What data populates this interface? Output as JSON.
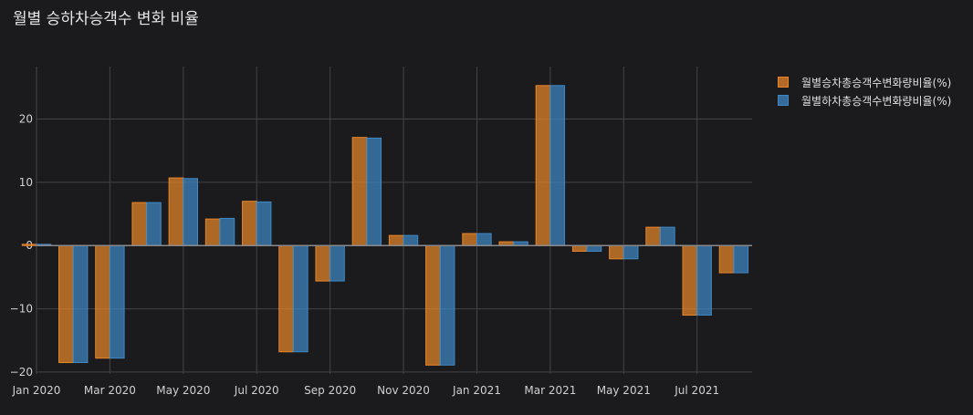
{
  "title": "월별 승하차승객수 변화 비율",
  "colors": {
    "background": "#1b1b1d",
    "grid": "#444446",
    "series": [
      "#e8862a",
      "#3f88c5"
    ]
  },
  "chart_data": {
    "type": "bar",
    "barmode": "group",
    "x": [
      "2020-01",
      "2020-02",
      "2020-03",
      "2020-04",
      "2020-05",
      "2020-06",
      "2020-07",
      "2020-08",
      "2020-09",
      "2020-10",
      "2020-11",
      "2020-12",
      "2021-01",
      "2021-02",
      "2021-03",
      "2021-04",
      "2021-05",
      "2021-06",
      "2021-07",
      "2021-08"
    ],
    "xtick_labels": [
      "Jan 2020",
      "Mar 2020",
      "May 2020",
      "Jul 2020",
      "Sep 2020",
      "Nov 2020",
      "Jan 2021",
      "Mar 2021",
      "May 2021",
      "Jul 2021"
    ],
    "xtick_values": [
      "2020-01",
      "2020-03",
      "2020-05",
      "2020-07",
      "2020-09",
      "2020-11",
      "2021-01",
      "2021-03",
      "2021-05",
      "2021-07"
    ],
    "yticks": [
      -20,
      -10,
      0,
      10,
      20
    ],
    "ytick_labels": [
      "−20",
      "−10",
      "0",
      "10",
      "20"
    ],
    "ylim": [
      -20.3,
      28.3
    ],
    "grid": true,
    "legend_position": "top-right",
    "series": [
      {
        "name": "월별승차총승객수변화량비율(%)",
        "values": [
          0.2,
          -18.5,
          -17.8,
          6.8,
          10.7,
          4.2,
          7.0,
          -16.8,
          -5.6,
          17.1,
          1.6,
          -18.9,
          1.9,
          0.6,
          25.3,
          -0.9,
          -2.1,
          2.9,
          -11.0,
          -4.3
        ]
      },
      {
        "name": "월별하차총승객수변화량비율(%)",
        "values": [
          0.2,
          -18.5,
          -17.8,
          6.8,
          10.6,
          4.3,
          6.9,
          -16.8,
          -5.6,
          17.0,
          1.6,
          -18.9,
          1.9,
          0.6,
          25.3,
          -0.9,
          -2.1,
          2.9,
          -11.0,
          -4.3
        ]
      }
    ]
  }
}
